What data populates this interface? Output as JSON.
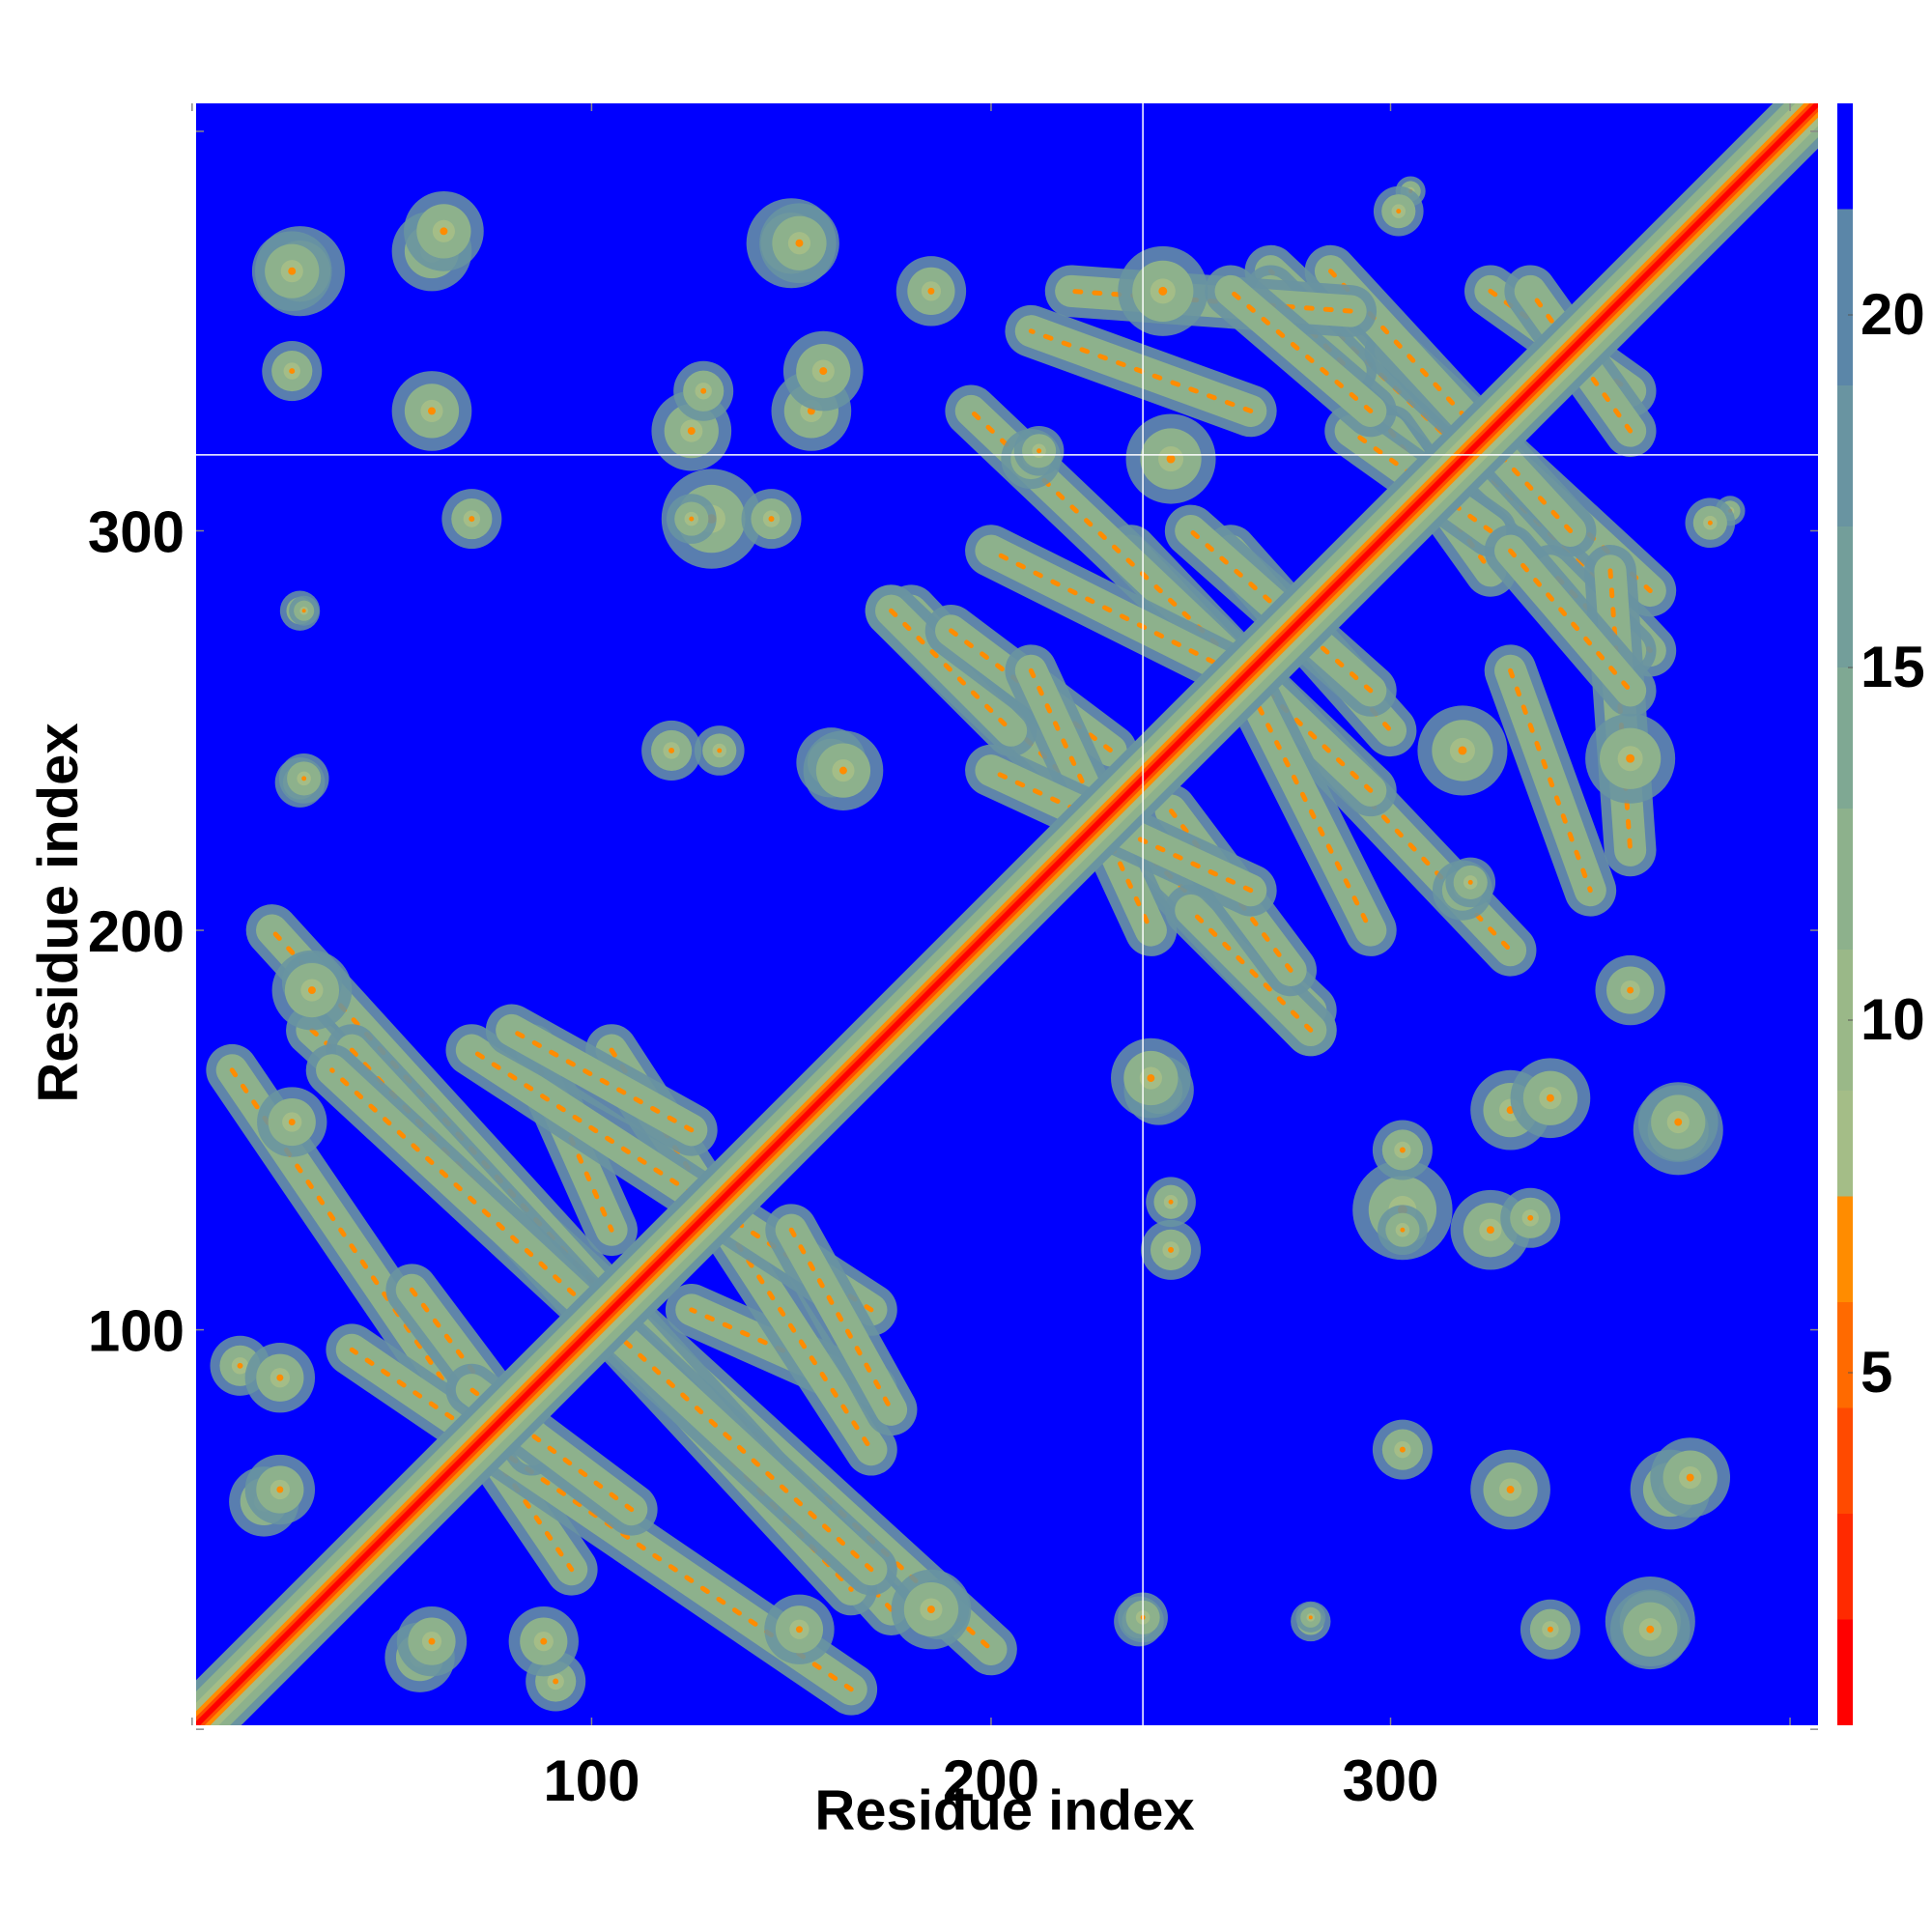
{
  "chart_data": {
    "type": "heatmap",
    "title": "",
    "xlabel": "Residue index",
    "ylabel": "Residue index",
    "n_residues": 407,
    "xlim": [
      1,
      407
    ],
    "ylim": [
      1,
      407
    ],
    "x_ticks": [
      100,
      200,
      300
    ],
    "y_ticks": [
      100,
      200,
      300
    ],
    "x_tick_labels": [
      "100",
      "200",
      "300"
    ],
    "y_tick_labels": [
      "100",
      "200",
      "300"
    ],
    "colorbar": {
      "range": [
        0,
        23
      ],
      "ticks": [
        5,
        10,
        15,
        20
      ],
      "tick_labels": [
        "5",
        "10",
        "15",
        "20"
      ],
      "levels": [
        {
          "max": 1.5,
          "color": "#ff0000"
        },
        {
          "max": 3,
          "color": "#ff2a00"
        },
        {
          "max": 4.5,
          "color": "#ff4a00"
        },
        {
          "max": 6,
          "color": "#ff6a00"
        },
        {
          "max": 7.5,
          "color": "#ff8c00"
        },
        {
          "max": 9,
          "color": "#a4bd87"
        },
        {
          "max": 11,
          "color": "#9ab888"
        },
        {
          "max": 13,
          "color": "#8db18c"
        },
        {
          "max": 15,
          "color": "#7fa893"
        },
        {
          "max": 17,
          "color": "#739e9a"
        },
        {
          "max": 19,
          "color": "#6994a1"
        },
        {
          "max": 21.5,
          "color": "#5b86a8"
        },
        {
          "max": 23,
          "color": "#0000ff"
        }
      ]
    },
    "background_color": "#0000ff",
    "reference_lines": {
      "x": 238,
      "y": 319,
      "color": "#ffffff"
    },
    "contact_segments": [
      {
        "from": [
          10,
          165
        ],
        "to": [
          95,
          40
        ]
      },
      {
        "from": [
          30,
          175
        ],
        "to": [
          200,
          20
        ]
      },
      {
        "from": [
          40,
          170
        ],
        "to": [
          165,
          35
        ]
      },
      {
        "from": [
          85,
          170
        ],
        "to": [
          105,
          125
        ]
      },
      {
        "from": [
          105,
          170
        ],
        "to": [
          170,
          70
        ]
      },
      {
        "from": [
          150,
          125
        ],
        "to": [
          175,
          80
        ]
      },
      {
        "from": [
          55,
          110
        ],
        "to": [
          85,
          70
        ]
      },
      {
        "from": [
          180,
          280
        ],
        "to": [
          280,
          175
        ]
      },
      {
        "from": [
          175,
          280
        ],
        "to": [
          205,
          250
        ]
      },
      {
        "from": [
          190,
          275
        ],
        "to": [
          230,
          245
        ]
      },
      {
        "from": [
          210,
          265
        ],
        "to": [
          240,
          200
        ]
      },
      {
        "from": [
          235,
          295
        ],
        "to": [
          330,
          195
        ]
      },
      {
        "from": [
          260,
          295
        ],
        "to": [
          300,
          250
        ]
      },
      {
        "from": [
          265,
          260
        ],
        "to": [
          295,
          200
        ]
      },
      {
        "from": [
          285,
          355
        ],
        "to": [
          365,
          270
        ]
      },
      {
        "from": [
          270,
          360
        ],
        "to": [
          290,
          340
        ]
      },
      {
        "from": [
          300,
          345
        ],
        "to": [
          365,
          285
        ]
      },
      {
        "from": [
          325,
          360
        ],
        "to": [
          360,
          335
        ]
      },
      {
        "from": [
          330,
          265
        ],
        "to": [
          350,
          210
        ]
      },
      {
        "from": [
          300,
          325
        ],
        "to": [
          325,
          290
        ]
      },
      {
        "from": [
          355,
          290
        ],
        "to": [
          360,
          220
        ]
      },
      {
        "from": [
          330,
          295
        ],
        "to": [
          360,
          260
        ]
      }
    ],
    "contact_blobs": [
      {
        "x": 27,
        "y": 365,
        "r": 9
      },
      {
        "x": 60,
        "y": 370,
        "r": 8
      },
      {
        "x": 150,
        "y": 372,
        "r": 9
      },
      {
        "x": 125,
        "y": 325,
        "r": 8
      },
      {
        "x": 155,
        "y": 330,
        "r": 8
      },
      {
        "x": 130,
        "y": 303,
        "r": 10
      },
      {
        "x": 70,
        "y": 303,
        "r": 6
      },
      {
        "x": 27,
        "y": 280,
        "r": 4
      },
      {
        "x": 27,
        "y": 237,
        "r": 5
      },
      {
        "x": 120,
        "y": 245,
        "r": 6
      },
      {
        "x": 160,
        "y": 242,
        "r": 7
      },
      {
        "x": 30,
        "y": 187,
        "r": 6
      },
      {
        "x": 12,
        "y": 91,
        "r": 6
      },
      {
        "x": 18,
        "y": 57,
        "r": 7
      },
      {
        "x": 60,
        "y": 22,
        "r": 7
      },
      {
        "x": 88,
        "y": 22,
        "r": 7
      },
      {
        "x": 152,
        "y": 25,
        "r": 7
      },
      {
        "x": 185,
        "y": 30,
        "r": 8
      },
      {
        "x": 238,
        "y": 28,
        "r": 5
      },
      {
        "x": 240,
        "y": 163,
        "r": 8
      },
      {
        "x": 245,
        "y": 132,
        "r": 5
      },
      {
        "x": 280,
        "y": 28,
        "r": 3
      },
      {
        "x": 303,
        "y": 145,
        "r": 6
      },
      {
        "x": 303,
        "y": 125,
        "r": 5
      },
      {
        "x": 340,
        "y": 158,
        "r": 8
      },
      {
        "x": 335,
        "y": 128,
        "r": 6
      },
      {
        "x": 372,
        "y": 152,
        "r": 8
      },
      {
        "x": 330,
        "y": 60,
        "r": 8
      },
      {
        "x": 375,
        "y": 63,
        "r": 8
      },
      {
        "x": 340,
        "y": 25,
        "r": 6
      },
      {
        "x": 365,
        "y": 25,
        "r": 8
      },
      {
        "x": 318,
        "y": 210,
        "r": 6
      },
      {
        "x": 212,
        "y": 320,
        "r": 5
      },
      {
        "x": 185,
        "y": 360,
        "r": 7
      },
      {
        "x": 243,
        "y": 360,
        "r": 9
      },
      {
        "x": 245,
        "y": 318,
        "r": 9
      },
      {
        "x": 305,
        "y": 385,
        "r": 3
      },
      {
        "x": 380,
        "y": 302,
        "r": 5
      }
    ]
  }
}
